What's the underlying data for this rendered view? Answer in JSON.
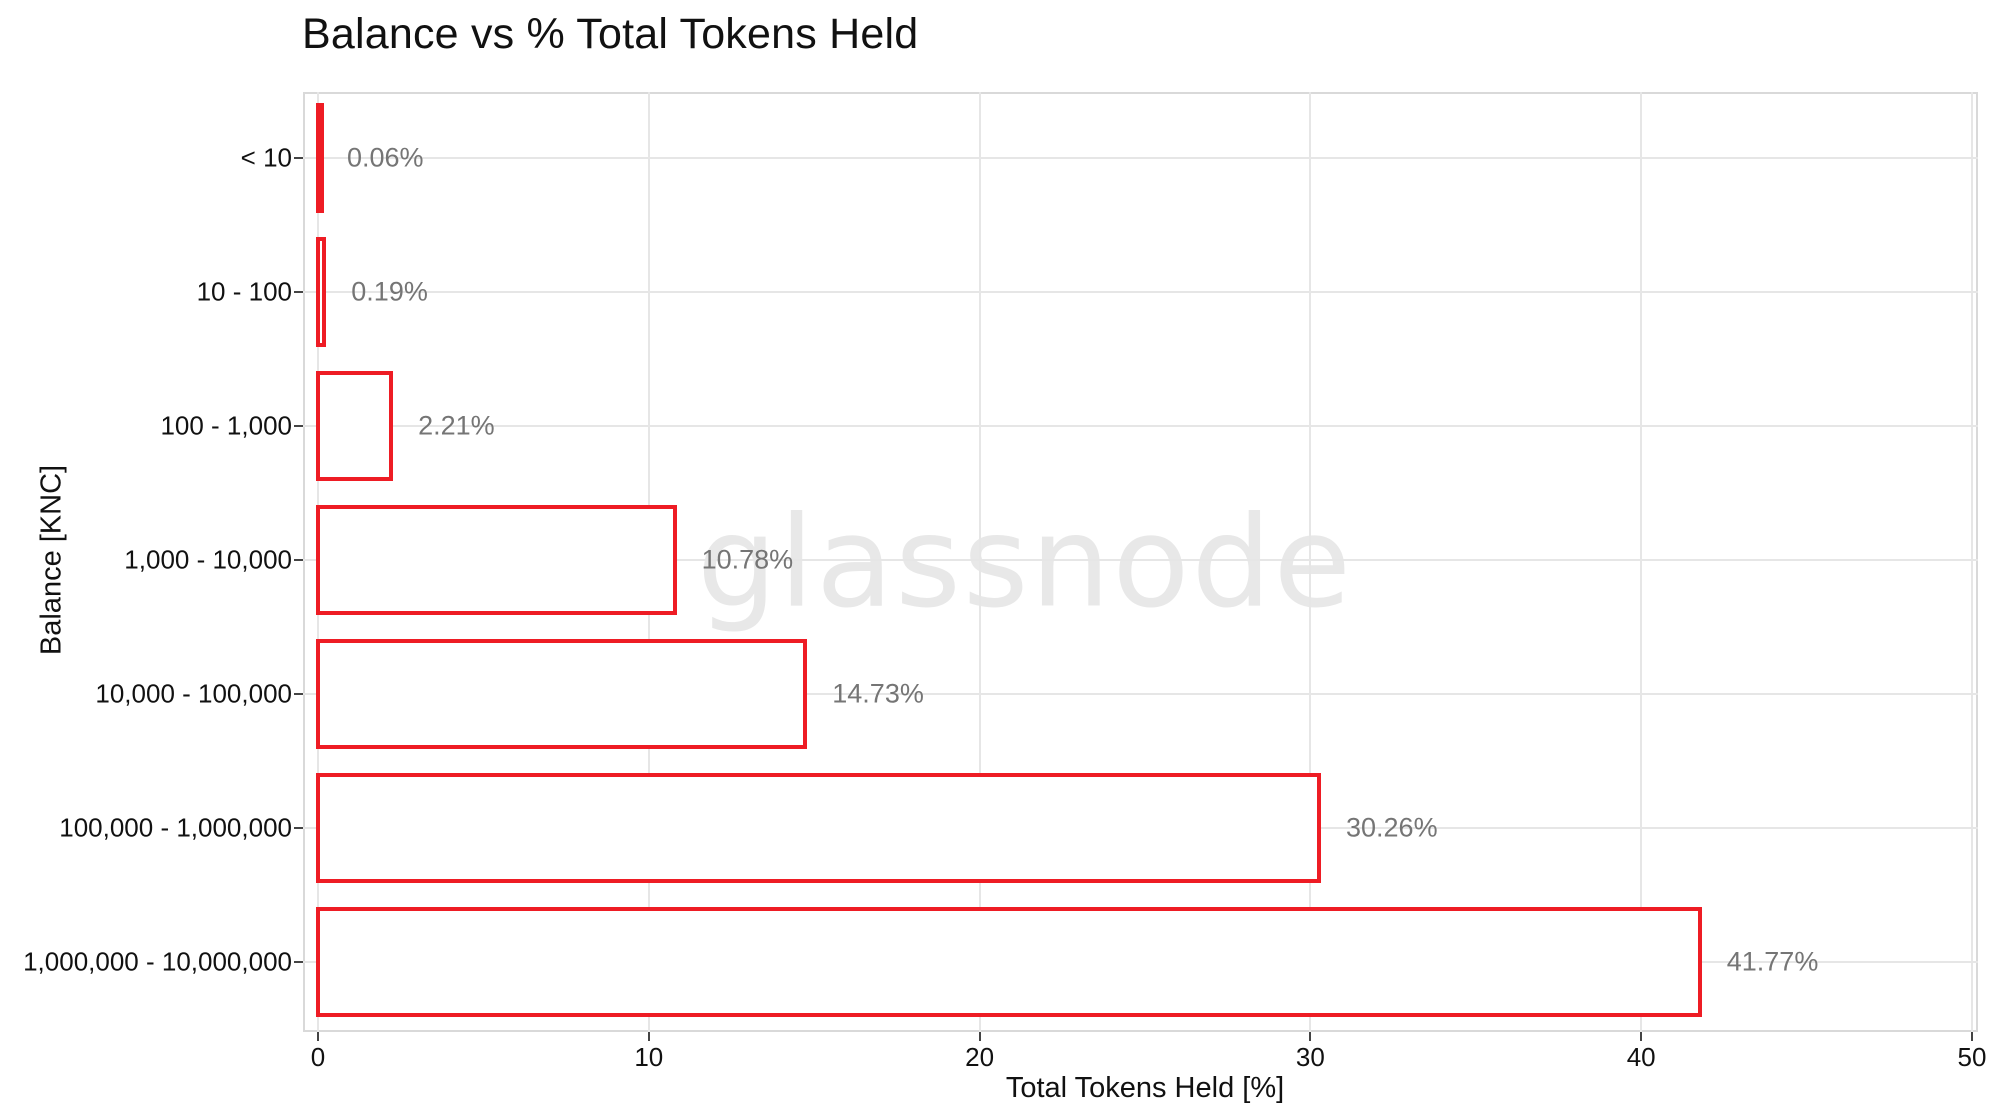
{
  "chart_data": {
    "type": "bar",
    "orientation": "horizontal",
    "title": "Balance vs % Total Tokens Held",
    "xlabel": "Total Tokens Held [%]",
    "ylabel": "Balance [KNC]",
    "watermark": "glassnode",
    "categories": [
      "< 10",
      "10 - 100",
      "100 - 1,000",
      "1,000 - 10,000",
      "10,000 - 100,000",
      "100,000 - 1,000,000",
      "1,000,000 - 10,000,000"
    ],
    "values": [
      0.06,
      0.19,
      2.21,
      10.78,
      14.73,
      30.26,
      41.77
    ],
    "value_labels": [
      "0.06%",
      "0.19%",
      "2.21%",
      "10.78%",
      "14.73%",
      "30.26%",
      "41.77%"
    ],
    "xlim": [
      0,
      50
    ],
    "x_ticks": [
      0,
      10,
      20,
      30,
      40,
      50
    ],
    "x_tick_labels": [
      "0",
      "10",
      "20",
      "30",
      "40",
      "50"
    ],
    "grid": true,
    "legend_position": "none",
    "colors": {
      "bar_outline": "#ee1c24",
      "bar_fill": "#ffffff",
      "value_label": "#757575",
      "axis_text": "#111111",
      "gridline": "#e6e6e6",
      "panel_border": "#d9d9d9",
      "watermark": "#e8e8e8",
      "background": "#ffffff"
    }
  }
}
